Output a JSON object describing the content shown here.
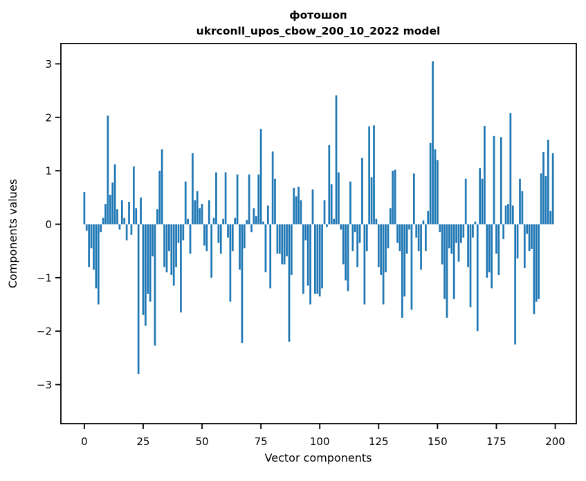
{
  "chart_data": {
    "type": "bar",
    "title": "фотошоп",
    "subtitle": "ukrconll_upos_cbow_200_10_2022 model",
    "xlabel": "Vector components",
    "ylabel": "Components values",
    "bar_color": "#1f77b4",
    "background_color": "#ffffff",
    "spine_color": "#000000",
    "n_components": 200,
    "x_ticks": [
      0,
      25,
      50,
      75,
      100,
      125,
      150,
      175,
      200
    ],
    "y_ticks": [
      -3,
      -2,
      -1,
      0,
      1,
      2,
      3
    ],
    "y_tick_labels": [
      "−3",
      "−2",
      "−1",
      "0",
      "1",
      "2",
      "3"
    ],
    "xlim": [
      -9.95,
      208.95
    ],
    "ylim": [
      -3.73,
      3.38
    ],
    "grid": false,
    "legend": false,
    "values": [
      0.6,
      -0.12,
      -0.8,
      -0.45,
      -0.85,
      -1.2,
      -1.5,
      -0.15,
      0.12,
      0.38,
      2.03,
      0.55,
      0.78,
      1.12,
      0.28,
      -0.1,
      0.45,
      0.12,
      -0.3,
      0.42,
      -0.2,
      1.08,
      0.3,
      -2.8,
      0.5,
      -1.7,
      -1.9,
      -1.3,
      -1.45,
      -0.6,
      -2.27,
      0.28,
      1.0,
      1.4,
      -0.8,
      -0.9,
      -0.5,
      -0.95,
      -1.15,
      -0.8,
      -0.35,
      -1.65,
      -0.3,
      0.8,
      0.1,
      -0.55,
      1.33,
      0.45,
      0.62,
      0.3,
      0.38,
      -0.4,
      -0.5,
      0.45,
      -1.0,
      0.12,
      0.97,
      -0.35,
      -0.55,
      0.1,
      0.97,
      -0.25,
      -1.45,
      -0.5,
      0.12,
      0.93,
      -0.85,
      -2.22,
      -0.45,
      0.08,
      0.93,
      -0.15,
      0.3,
      0.15,
      0.93,
      1.78,
      0.05,
      -0.9,
      0.35,
      -1.2,
      1.36,
      0.85,
      -0.55,
      -0.55,
      -0.75,
      -0.75,
      -0.6,
      -2.2,
      -0.95,
      0.68,
      0.52,
      0.7,
      0.45,
      -1.3,
      -0.3,
      -1.15,
      -1.5,
      0.65,
      -1.3,
      -1.3,
      -1.35,
      -1.2,
      0.45,
      -0.05,
      1.48,
      0.75,
      0.1,
      2.41,
      0.97,
      -0.1,
      -0.75,
      -1.05,
      -1.25,
      0.8,
      -0.5,
      -0.15,
      -0.8,
      -0.35,
      1.24,
      -1.5,
      -0.5,
      1.83,
      0.88,
      1.85,
      0.1,
      -0.8,
      -0.95,
      -1.5,
      -0.9,
      -0.45,
      0.3,
      1.0,
      1.02,
      -0.35,
      -0.5,
      -1.75,
      -1.35,
      -0.55,
      -0.1,
      -1.6,
      0.95,
      -0.25,
      -0.5,
      -0.85,
      0.07,
      -0.5,
      0.25,
      1.52,
      3.05,
      1.4,
      1.2,
      -0.15,
      -0.75,
      -1.4,
      -1.75,
      -0.45,
      -0.55,
      -1.4,
      -0.35,
      -0.7,
      -0.35,
      -0.25,
      0.85,
      -0.8,
      -1.55,
      -0.25,
      0.05,
      -2.0,
      1.05,
      0.85,
      1.84,
      -1.0,
      -0.9,
      -1.2,
      1.65,
      -0.55,
      -0.95,
      1.63,
      -0.28,
      0.35,
      0.38,
      2.08,
      0.35,
      -2.25,
      -0.64,
      0.85,
      0.62,
      -0.82,
      -0.18,
      -0.5,
      -0.46,
      -1.68,
      -1.45,
      -1.4,
      0.95,
      1.35,
      0.9,
      1.58,
      0.25,
      1.33
    ]
  }
}
